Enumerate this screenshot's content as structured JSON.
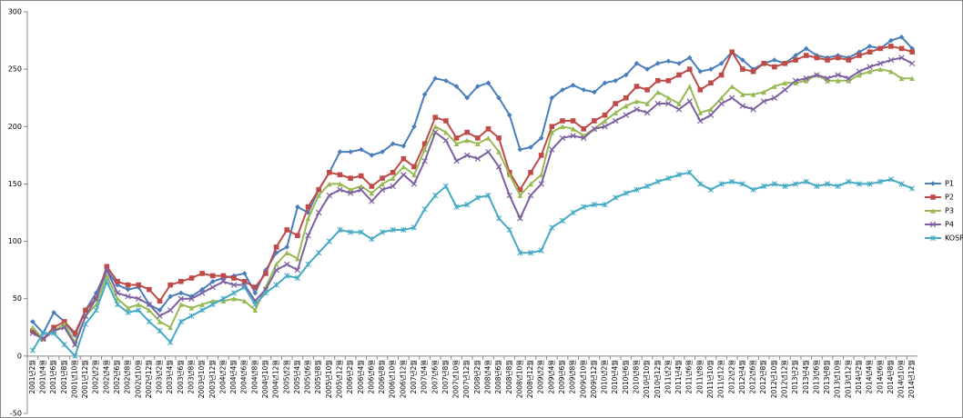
{
  "chart_data": {
    "type": "line",
    "categories": [
      "2001년2월",
      "2001년4월",
      "2001년6월",
      "2001년8월",
      "2001년10월",
      "2001년12월",
      "2002년2월",
      "2002년4월",
      "2002년6월",
      "2002년8월",
      "2002년10월",
      "2002년12월",
      "2003년2월",
      "2003년4월",
      "2003년6월",
      "2003년8월",
      "2003년10월",
      "2003년12월",
      "2004년2월",
      "2004년4월",
      "2004년6월",
      "2004년8월",
      "2004년10월",
      "2004년12월",
      "2005년2월",
      "2005년4월",
      "2005년6월",
      "2005년8월",
      "2005년10월",
      "2005년12월",
      "2006년2월",
      "2006년4월",
      "2006년6월",
      "2006년8월",
      "2006년10월",
      "2006년12월",
      "2007년2월",
      "2007년4월",
      "2007년6월",
      "2007년8월",
      "2007년10월",
      "2007년12월",
      "2008년2월",
      "2008년4월",
      "2008년6월",
      "2008년8월",
      "2008년10월",
      "2008년12월",
      "2009년2월",
      "2009년4월",
      "2009년6월",
      "2009년8월",
      "2009년10월",
      "2009년12월",
      "2010년2월",
      "2010년4월",
      "2010년6월",
      "2010년8월",
      "2010년10월",
      "2010년12월",
      "2011년2월",
      "2011년4월",
      "2011년6월",
      "2011년8월",
      "2011년10월",
      "2011년12월",
      "2012년2월",
      "2012년4월",
      "2012년6월",
      "2012년8월",
      "2012년10월",
      "2012년12월",
      "2013년2월",
      "2013년4월",
      "2013년6월",
      "2013년8월",
      "2013년10월",
      "2013년12월",
      "2014년2월",
      "2014년4월",
      "2014년6월",
      "2014년8월",
      "2014년10월",
      "2014년12월"
    ],
    "series": [
      {
        "name": "P1",
        "color": "#4a7ebb",
        "marker": "diamond",
        "values": [
          30,
          20,
          38,
          30,
          18,
          40,
          55,
          75,
          62,
          58,
          60,
          45,
          40,
          52,
          55,
          52,
          58,
          65,
          68,
          70,
          72,
          55,
          75,
          90,
          95,
          130,
          125,
          145,
          160,
          178,
          178,
          180,
          175,
          178,
          185,
          183,
          200,
          228,
          242,
          240,
          235,
          225,
          235,
          238,
          225,
          210,
          180,
          182,
          190,
          225,
          232,
          236,
          232,
          230,
          238,
          240,
          245,
          255,
          250,
          255,
          257,
          255,
          260,
          248,
          250,
          255,
          265,
          258,
          250,
          255,
          258,
          255,
          262,
          268,
          262,
          260,
          262,
          260,
          265,
          270,
          268,
          275,
          278,
          268
        ]
      },
      {
        "name": "P2",
        "color": "#be4b48",
        "marker": "square",
        "values": [
          22,
          15,
          25,
          30,
          20,
          40,
          50,
          78,
          65,
          62,
          62,
          58,
          48,
          62,
          65,
          68,
          72,
          70,
          70,
          68,
          65,
          60,
          72,
          95,
          110,
          105,
          130,
          145,
          160,
          158,
          155,
          157,
          148,
          155,
          160,
          172,
          165,
          185,
          208,
          205,
          190,
          195,
          190,
          198,
          190,
          160,
          145,
          160,
          175,
          200,
          205,
          205,
          198,
          205,
          210,
          220,
          225,
          235,
          232,
          240,
          240,
          245,
          250,
          232,
          238,
          245,
          265,
          250,
          248,
          255,
          252,
          255,
          258,
          262,
          260,
          258,
          260,
          258,
          262,
          265,
          268,
          270,
          268,
          265
        ]
      },
      {
        "name": "P3",
        "color": "#98b954",
        "marker": "triangle",
        "values": [
          25,
          15,
          22,
          28,
          12,
          35,
          45,
          70,
          50,
          42,
          45,
          40,
          30,
          25,
          45,
          42,
          45,
          48,
          48,
          50,
          48,
          40,
          60,
          80,
          90,
          85,
          120,
          140,
          150,
          150,
          145,
          148,
          142,
          150,
          155,
          165,
          158,
          180,
          200,
          195,
          185,
          188,
          185,
          190,
          178,
          158,
          140,
          150,
          158,
          195,
          200,
          198,
          192,
          198,
          205,
          212,
          218,
          222,
          220,
          230,
          225,
          220,
          235,
          212,
          215,
          225,
          235,
          228,
          228,
          230,
          235,
          238,
          238,
          240,
          245,
          240,
          240,
          240,
          245,
          248,
          250,
          248,
          242,
          242
        ]
      },
      {
        "name": "P4",
        "color": "#7d60a0",
        "marker": "cross",
        "values": [
          20,
          15,
          22,
          25,
          10,
          35,
          50,
          75,
          55,
          52,
          50,
          45,
          35,
          40,
          50,
          50,
          55,
          60,
          65,
          62,
          62,
          48,
          58,
          75,
          80,
          75,
          105,
          125,
          140,
          145,
          142,
          145,
          135,
          145,
          148,
          158,
          150,
          170,
          195,
          188,
          170,
          175,
          172,
          178,
          165,
          140,
          120,
          140,
          150,
          180,
          190,
          192,
          190,
          198,
          200,
          205,
          210,
          215,
          212,
          220,
          220,
          215,
          222,
          205,
          210,
          220,
          225,
          218,
          215,
          222,
          225,
          232,
          240,
          242,
          245,
          242,
          245,
          242,
          248,
          252,
          255,
          258,
          260,
          255
        ]
      },
      {
        "name": "KOSP",
        "color": "#46aac5",
        "marker": "star",
        "values": [
          5,
          20,
          20,
          10,
          0,
          28,
          40,
          65,
          45,
          38,
          40,
          30,
          22,
          12,
          30,
          35,
          40,
          45,
          50,
          55,
          60,
          45,
          55,
          62,
          70,
          68,
          80,
          90,
          100,
          110,
          108,
          108,
          102,
          108,
          110,
          110,
          112,
          128,
          140,
          148,
          130,
          132,
          138,
          140,
          120,
          110,
          90,
          90,
          92,
          112,
          118,
          125,
          130,
          132,
          132,
          138,
          142,
          145,
          148,
          152,
          155,
          158,
          160,
          150,
          145,
          150,
          152,
          150,
          145,
          148,
          150,
          148,
          150,
          152,
          148,
          150,
          148,
          152,
          150,
          150,
          152,
          154,
          150,
          146
        ]
      }
    ],
    "ylim": [
      -50,
      300
    ],
    "yticks": [
      -50,
      0,
      50,
      100,
      150,
      200,
      250,
      300
    ],
    "legend": "right"
  }
}
